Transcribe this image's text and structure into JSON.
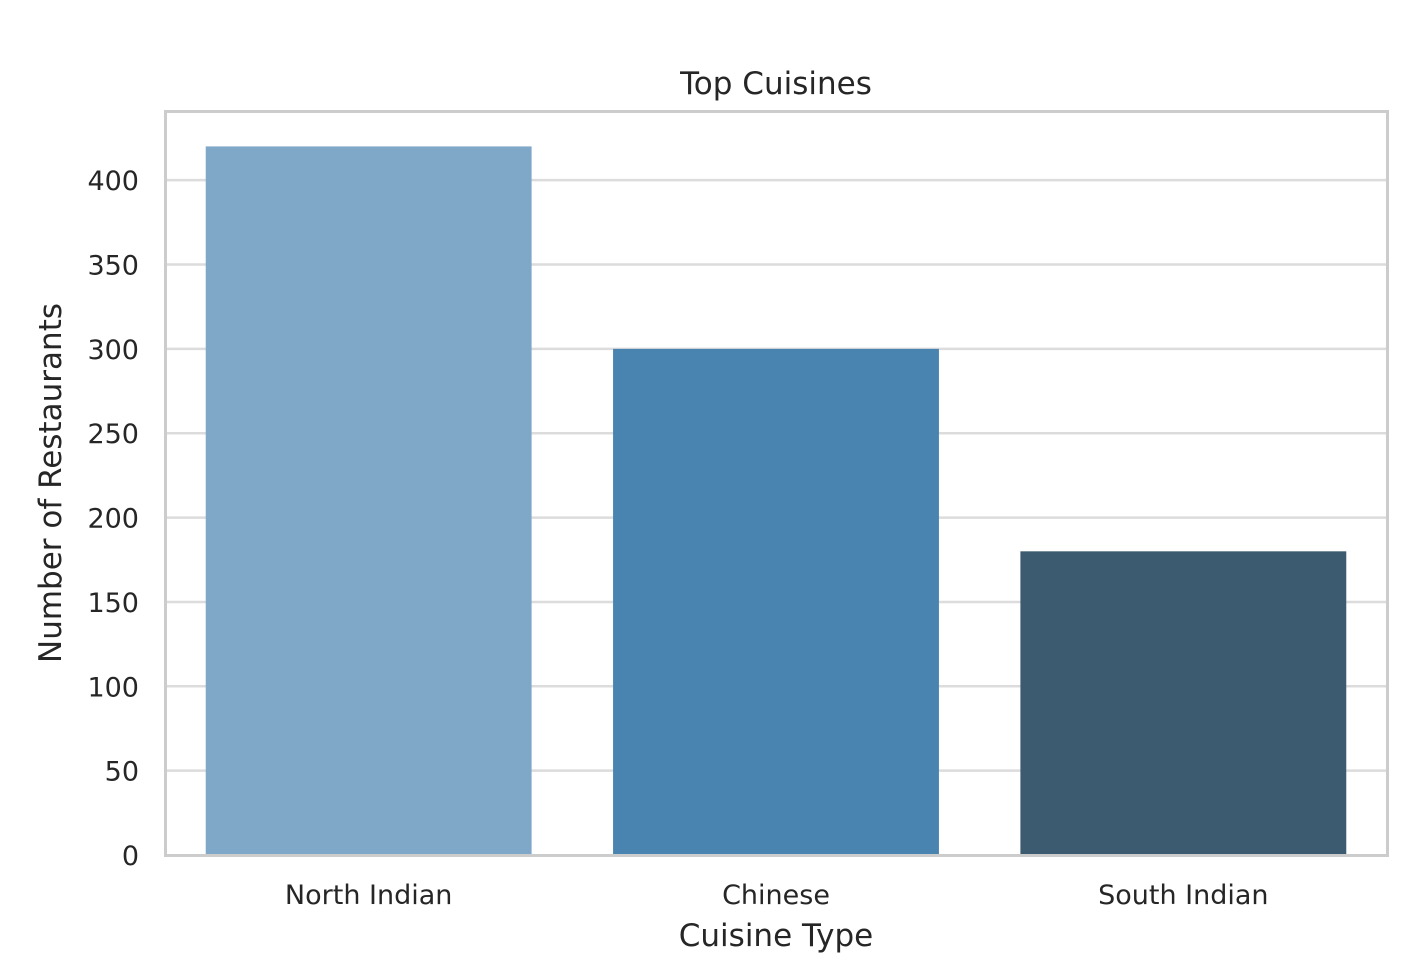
{
  "chart_data": {
    "type": "bar",
    "title": "Top Cuisines",
    "xlabel": "Cuisine Type",
    "ylabel": "Number of Restaurants",
    "categories": [
      "North Indian",
      "Chinese",
      "South Indian"
    ],
    "values": [
      420,
      300,
      180
    ],
    "colors": [
      "#7ea7c8",
      "#4983af",
      "#3d5b70"
    ],
    "ylim": [
      0,
      441
    ],
    "yticks": [
      0,
      50,
      100,
      150,
      200,
      250,
      300,
      350,
      400
    ],
    "grid": true
  }
}
